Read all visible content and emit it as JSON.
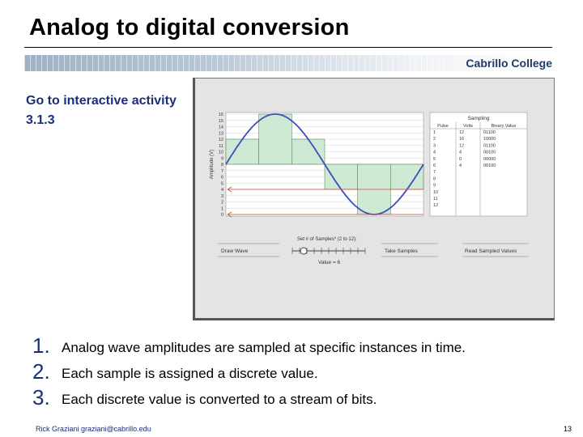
{
  "title": "Analog to digital conversion",
  "brand": "Cabrillo College",
  "side_note": "Go to interactive activity 3.1.3",
  "applet": {
    "y_axis_label": "Amplitude (V)",
    "y_ticks": [
      "16",
      "15",
      "14",
      "13",
      "12",
      "11",
      "10",
      "9",
      "8",
      "7",
      "6",
      "5",
      "4",
      "3",
      "2",
      "1",
      "0"
    ],
    "table_title": "Sampling",
    "table_headers": [
      "Pulse",
      "Volts",
      "Binary Value"
    ],
    "pulses": [
      "1",
      "2",
      "3",
      "4",
      "5",
      "6",
      "7",
      "8",
      "9",
      "10",
      "11",
      "12"
    ],
    "volts": [
      "12",
      "16",
      "12",
      "4",
      "0",
      "4",
      "",
      "",
      "",
      "",
      "",
      ""
    ],
    "binary": [
      "01100",
      "10000",
      "01100",
      "00100",
      "00000",
      "00100",
      "",
      "",
      "",
      "",
      "",
      ""
    ],
    "draw_wave_btn": "Draw Wave",
    "samples_label": "Set # of Samples* (2 to 12):",
    "value_label": "Value = 6",
    "take_samples_btn": "Take Samples",
    "read_values_btn": "Read Sampled Values"
  },
  "points": [
    {
      "num": "1.",
      "text": "Analog wave amplitudes are sampled at specific instances in time."
    },
    {
      "num": "2.",
      "text": "Each sample is assigned a discrete value."
    },
    {
      "num": "3.",
      "text": "Each discrete value is converted to a stream of bits."
    }
  ],
  "footer": "Rick Graziani graziani@cabrillo.edu",
  "page_number": "13"
}
